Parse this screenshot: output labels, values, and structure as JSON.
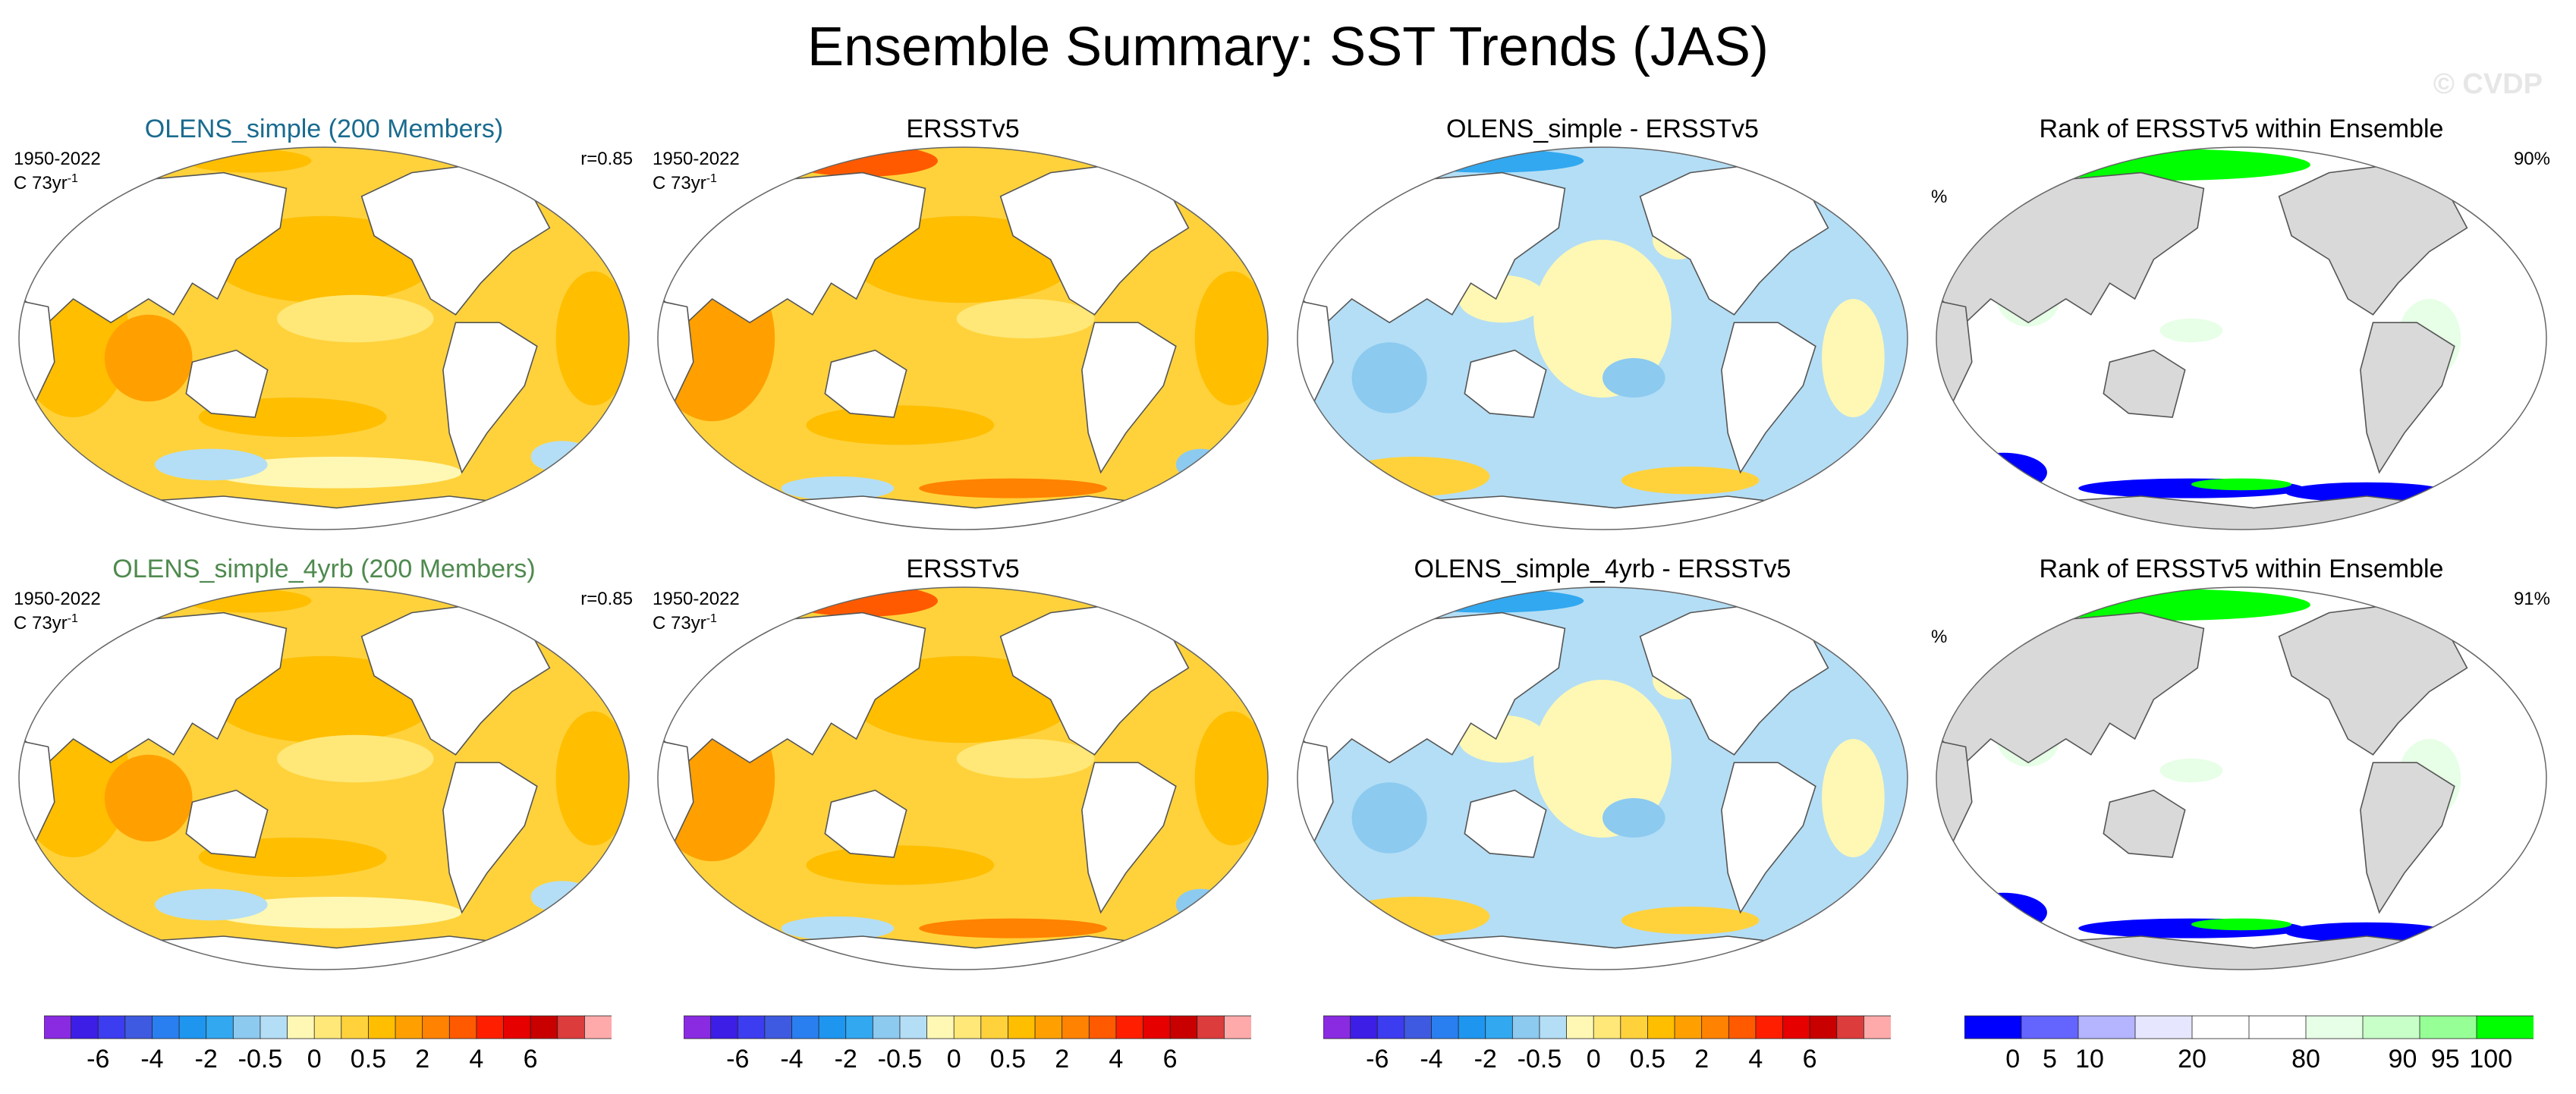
{
  "title": "Ensemble Summary: SST Trends (JAS)",
  "watermark": "© CVDP",
  "rows": [
    {
      "panels": [
        {
          "title": "OLENS_simple (200 Members)",
          "title_color": "#1a6b8f",
          "period": "1950-2022",
          "units_base": "C 73yr",
          "units_sup": "-1",
          "corr": "r=0.85",
          "kind": "ens"
        },
        {
          "title": "ERSSTv5",
          "title_color": "#000000",
          "period": "1950-2022",
          "units_base": "C 73yr",
          "units_sup": "-1",
          "kind": "obs"
        },
        {
          "title": "OLENS_simple - ERSSTv5",
          "title_color": "#000000",
          "kind": "diff"
        },
        {
          "title": "Rank of ERSSTv5 within Ensemble",
          "title_color": "#000000",
          "pct_sign": "%",
          "pct": "90%",
          "kind": "rank"
        }
      ]
    },
    {
      "panels": [
        {
          "title": "OLENS_simple_4yrb (200 Members)",
          "title_color": "#4f8a4f",
          "period": "1950-2022",
          "units_base": "C 73yr",
          "units_sup": "-1",
          "corr": "r=0.85",
          "kind": "ens"
        },
        {
          "title": "ERSSTv5",
          "title_color": "#000000",
          "period": "1950-2022",
          "units_base": "C 73yr",
          "units_sup": "-1",
          "kind": "obs"
        },
        {
          "title": "OLENS_simple_4yrb - ERSSTv5",
          "title_color": "#000000",
          "kind": "diff"
        },
        {
          "title": "Rank of ERSSTv5 within Ensemble",
          "title_color": "#000000",
          "pct_sign": "%",
          "pct": "91%",
          "kind": "rank"
        }
      ]
    }
  ],
  "colorbars": {
    "trend": {
      "colors": [
        "#8a2be2",
        "#3d1ee6",
        "#3c3cf0",
        "#3e5ae0",
        "#2a7ff0",
        "#1e96f0",
        "#32a8f0",
        "#8ccaf0",
        "#b4def5",
        "#fff8b4",
        "#ffe878",
        "#ffd23c",
        "#ffbe00",
        "#ffa000",
        "#ff8200",
        "#ff5a00",
        "#ff1e00",
        "#e60000",
        "#c80000",
        "#dc3c3c",
        "#ffaaaa"
      ],
      "ticks": [
        {
          "label": "-6",
          "at": 2
        },
        {
          "label": "-4",
          "at": 4
        },
        {
          "label": "-2",
          "at": 6
        },
        {
          "label": "-0.5",
          "at": 8
        },
        {
          "label": "0",
          "at": 10
        },
        {
          "label": "0.5",
          "at": 12
        },
        {
          "label": "2",
          "at": 14
        },
        {
          "label": "4",
          "at": 16
        },
        {
          "label": "6",
          "at": 18
        }
      ]
    },
    "rank": {
      "colors": [
        "#0000ff",
        "#6464ff",
        "#b4b4ff",
        "#e6e6ff",
        "#ffffff",
        "#ffffff",
        "#e6ffe6",
        "#c8ffc8",
        "#96ff96",
        "#00ff00"
      ],
      "ticks": [
        {
          "label": "0",
          "at": 0.85
        },
        {
          "label": "5",
          "at": 1.5
        },
        {
          "label": "10",
          "at": 2.2
        },
        {
          "label": "20",
          "at": 4
        },
        {
          "label": "80",
          "at": 6
        },
        {
          "label": "90",
          "at": 7.7
        },
        {
          "label": "95",
          "at": 8.45
        },
        {
          "label": "100",
          "at": 9.25
        }
      ]
    }
  },
  "chart_data": [
    {
      "type": "heatmap",
      "title": "OLENS_simple (200 Members)",
      "variable": "SST trend",
      "units": "C 73yr-1",
      "period": "1950-2022",
      "pattern_correlation": 0.85,
      "colorbar_ticks": [
        -6,
        -4,
        -2,
        -0.5,
        0,
        0.5,
        2,
        4,
        6
      ]
    },
    {
      "type": "heatmap",
      "title": "ERSSTv5",
      "variable": "SST trend",
      "units": "C 73yr-1",
      "period": "1950-2022",
      "colorbar_ticks": [
        -6,
        -4,
        -2,
        -0.5,
        0,
        0.5,
        2,
        4,
        6
      ]
    },
    {
      "type": "heatmap",
      "title": "OLENS_simple - ERSSTv5",
      "variable": "SST trend difference",
      "colorbar_ticks": [
        -6,
        -4,
        -2,
        -0.5,
        0,
        0.5,
        2,
        4,
        6
      ]
    },
    {
      "type": "heatmap",
      "title": "Rank of ERSSTv5 within Ensemble",
      "units": "%",
      "area_within_range": "90%",
      "colorbar_ticks": [
        0,
        5,
        10,
        20,
        80,
        90,
        95,
        100
      ]
    },
    {
      "type": "heatmap",
      "title": "OLENS_simple_4yrb (200 Members)",
      "variable": "SST trend",
      "units": "C 73yr-1",
      "period": "1950-2022",
      "pattern_correlation": 0.85,
      "colorbar_ticks": [
        -6,
        -4,
        -2,
        -0.5,
        0,
        0.5,
        2,
        4,
        6
      ]
    },
    {
      "type": "heatmap",
      "title": "ERSSTv5",
      "variable": "SST trend",
      "units": "C 73yr-1",
      "period": "1950-2022",
      "colorbar_ticks": [
        -6,
        -4,
        -2,
        -0.5,
        0,
        0.5,
        2,
        4,
        6
      ]
    },
    {
      "type": "heatmap",
      "title": "OLENS_simple_4yrb - ERSSTv5",
      "variable": "SST trend difference",
      "colorbar_ticks": [
        -6,
        -4,
        -2,
        -0.5,
        0,
        0.5,
        2,
        4,
        6
      ]
    },
    {
      "type": "heatmap",
      "title": "Rank of ERSSTv5 within Ensemble",
      "units": "%",
      "area_within_range": "91%",
      "colorbar_ticks": [
        0,
        5,
        10,
        20,
        80,
        90,
        95,
        100
      ]
    }
  ]
}
